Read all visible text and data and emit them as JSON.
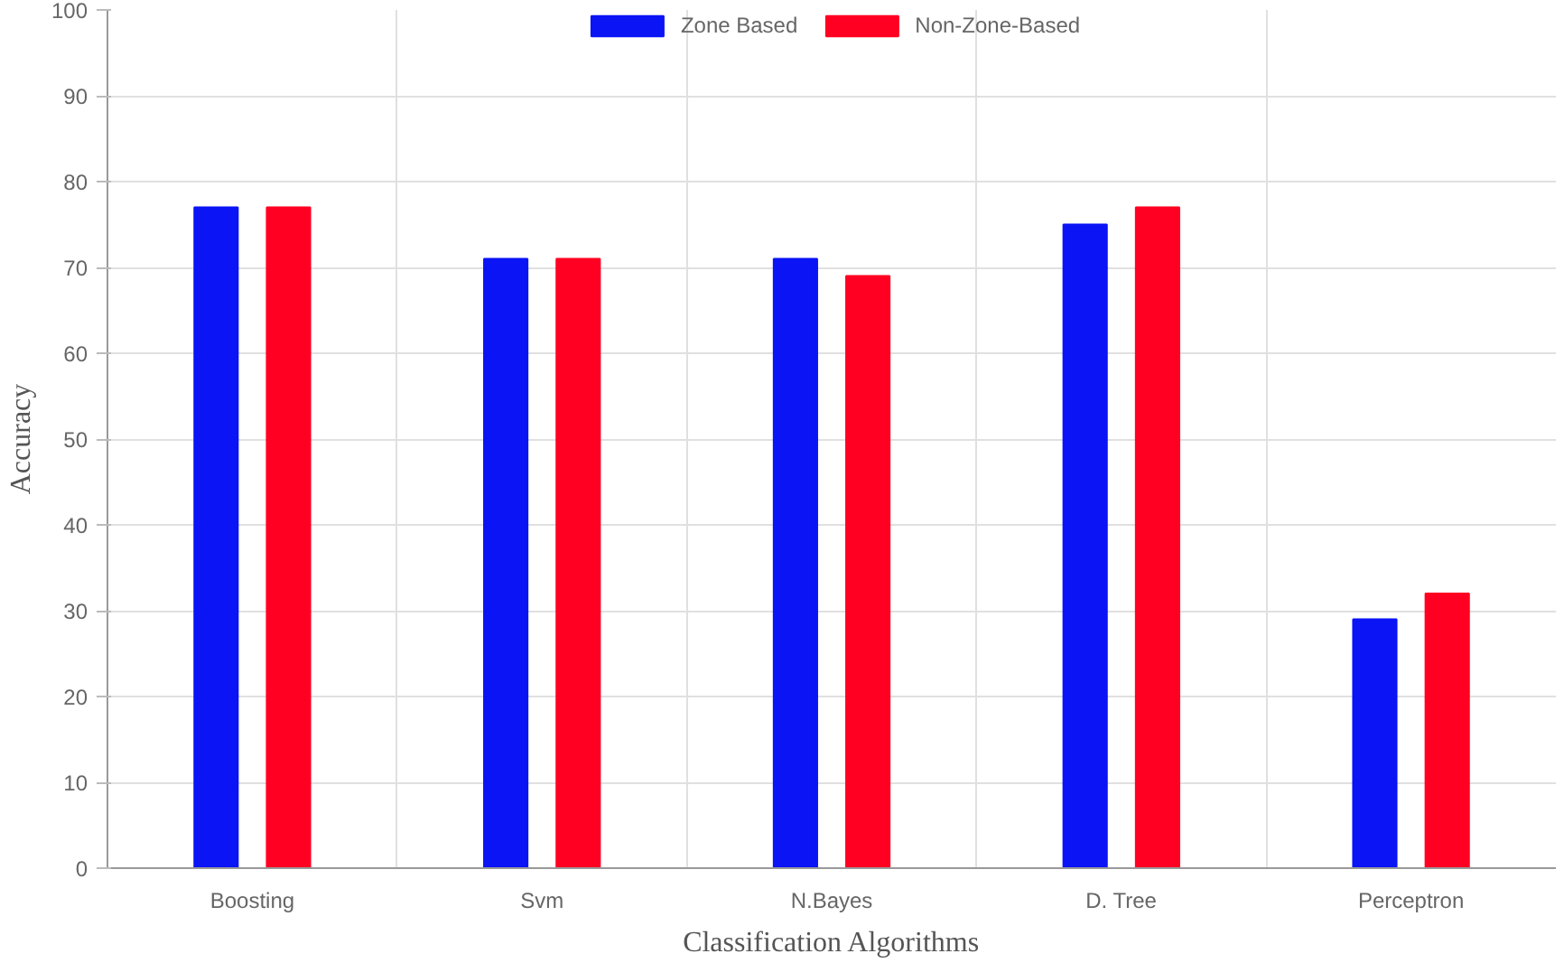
{
  "chart_data": {
    "type": "bar",
    "xlabel": "Classification Algorithms",
    "ylabel": "Accuracy",
    "categories": [
      "Boosting",
      "Svm",
      "N.Bayes",
      "D. Tree",
      "Perceptron"
    ],
    "series": [
      {
        "name": "Zone Based",
        "color": "#0a14f5",
        "values": [
          77,
          71,
          71,
          75,
          29
        ]
      },
      {
        "name": "Non-Zone-Based",
        "color": "#ff0022",
        "values": [
          77,
          71,
          69,
          77,
          32
        ]
      }
    ],
    "ylim": [
      0,
      100
    ],
    "yticks": [
      0,
      10,
      20,
      30,
      40,
      50,
      60,
      70,
      80,
      90,
      100
    ],
    "grid": true,
    "legend": "top"
  }
}
